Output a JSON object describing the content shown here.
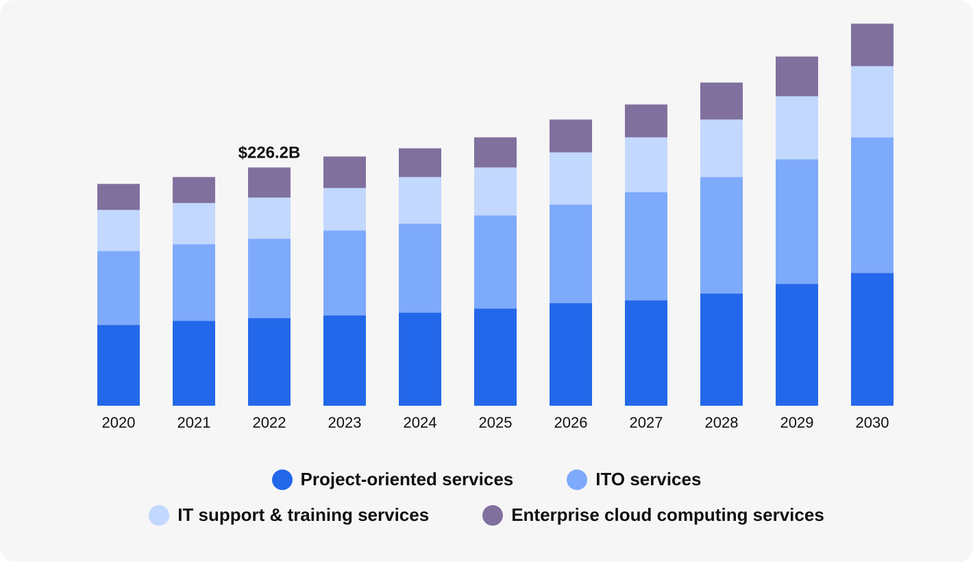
{
  "chart_data": {
    "type": "bar",
    "stacked": true,
    "title": "",
    "xlabel": "",
    "ylabel": "",
    "unit": "USD billion (estimated)",
    "categories": [
      "2020",
      "2021",
      "2022",
      "2023",
      "2024",
      "2025",
      "2026",
      "2027",
      "2028",
      "2029",
      "2030"
    ],
    "series": [
      {
        "name": "Project-oriented services",
        "color": "#2368ea",
        "values": [
          76.7,
          80.6,
          83.2,
          85.8,
          88.4,
          92.3,
          97.5,
          100.1,
          106.6,
          115.7,
          126.1
        ]
      },
      {
        "name": "ITO services",
        "color": "#7eaafc",
        "values": [
          70.2,
          72.8,
          75.4,
          80.6,
          84.5,
          88.4,
          93.6,
          102.7,
          110.5,
          118.3,
          128.7
        ]
      },
      {
        "name": "IT support & training services",
        "color": "#c2d8fe",
        "values": [
          39.0,
          39.0,
          39.0,
          40.3,
          44.2,
          45.5,
          49.4,
          52.0,
          54.6,
          59.8,
          67.6
        ]
      },
      {
        "name": "Enterprise cloud computing services",
        "color": "#80709e",
        "values": [
          24.7,
          24.7,
          28.6,
          29.9,
          27.3,
          28.6,
          31.2,
          31.2,
          35.1,
          37.7,
          40.3
        ]
      }
    ],
    "annotations": [
      {
        "category": "2022",
        "text": "$226.2B"
      }
    ],
    "ylim": [
      0,
      365
    ],
    "grid": false,
    "legend_position": "bottom"
  }
}
